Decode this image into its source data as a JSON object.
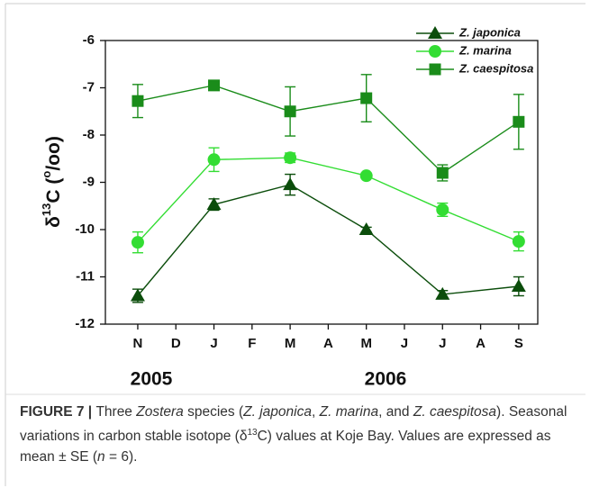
{
  "chart_data": {
    "type": "line",
    "ylabel": [
      "δ",
      "13",
      "C (",
      "o",
      "/oo)"
    ],
    "x": [
      0,
      2,
      4,
      6,
      8,
      10
    ],
    "xlim": [
      -0.85,
      10.5
    ],
    "xticks": [
      {
        "value": 0,
        "label": "N"
      },
      {
        "value": 1,
        "label": "D"
      },
      {
        "value": 2,
        "label": "J"
      },
      {
        "value": 3,
        "label": "F"
      },
      {
        "value": 4,
        "label": "M"
      },
      {
        "value": 5,
        "label": "A"
      },
      {
        "value": 6,
        "label": "M"
      },
      {
        "value": 7,
        "label": "J"
      },
      {
        "value": 8,
        "label": "J"
      },
      {
        "value": 9,
        "label": "A"
      },
      {
        "value": 10,
        "label": "S"
      }
    ],
    "ylim": [
      -12,
      -6
    ],
    "yticks": [
      -12,
      -11,
      -10,
      -9,
      -8,
      -7,
      -6
    ],
    "annotations": [
      "2005",
      "2006"
    ],
    "legend": "top-right",
    "series": [
      {
        "name": "Z. japonica",
        "color": "#0b4d0b",
        "marker": "triangle",
        "values": [
          -11.4,
          -9.47,
          -9.05,
          -10.0,
          -11.37,
          -11.2
        ],
        "errors": [
          0.14,
          0.12,
          0.22,
          0.05,
          0.08,
          0.2
        ]
      },
      {
        "name": "Z. marina",
        "color": "#33dd33",
        "marker": "circle",
        "values": [
          -10.27,
          -8.52,
          -8.48,
          -8.86,
          -9.58,
          -10.25
        ],
        "errors": [
          0.22,
          0.25,
          0.1,
          0.05,
          0.14,
          0.2
        ]
      },
      {
        "name": "Z. caespitosa",
        "color": "#1a8c1a",
        "marker": "square",
        "values": [
          -7.28,
          -6.95,
          -7.5,
          -7.22,
          -8.8,
          -7.72
        ],
        "errors": [
          0.35,
          0.05,
          0.52,
          0.5,
          0.17,
          0.58
        ]
      }
    ]
  },
  "caption": [
    "FIGURE 7 | ",
    "Three ",
    "Zostera",
    " species (",
    "Z. japonica",
    ", ",
    "Z. marina",
    ", and ",
    "Z. caespitosa",
    "). Seasonal variations in carbon stable isotope (δ",
    "13",
    "C) values at Koje Bay. Values are expressed as mean ± SE (",
    "n",
    " = 6)."
  ]
}
